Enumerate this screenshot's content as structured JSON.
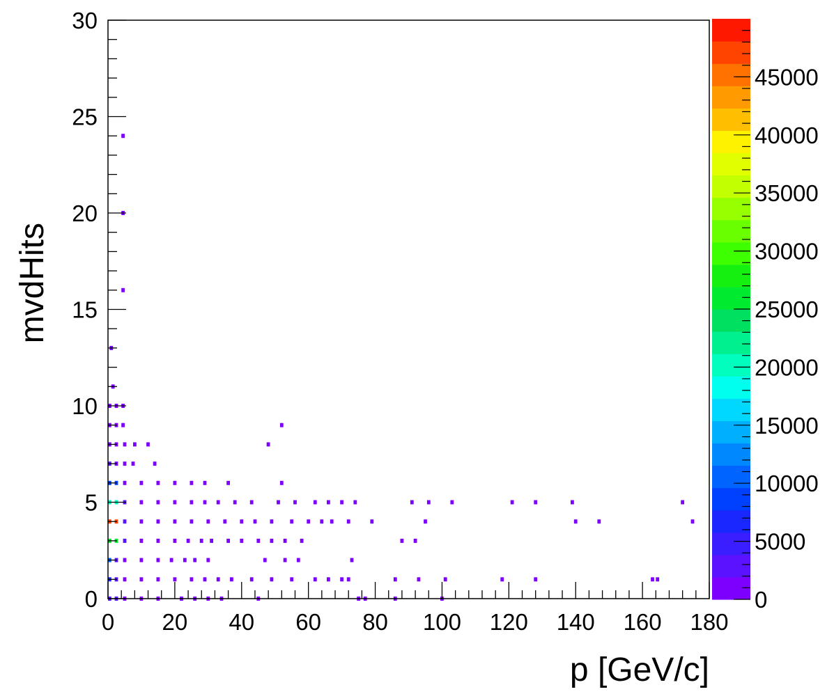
{
  "chart_data": {
    "type": "heatmap",
    "title": "",
    "xlabel": "p [GeV/c]",
    "ylabel": "mvdHits",
    "xlim": [
      0,
      180
    ],
    "ylim": [
      0,
      30
    ],
    "zlim": [
      0,
      50000
    ],
    "x_ticks": [
      "0",
      "20",
      "40",
      "60",
      "80",
      "100",
      "120",
      "140",
      "160",
      "180"
    ],
    "y_ticks": [
      "0",
      "5",
      "10",
      "15",
      "20",
      "25",
      "30"
    ],
    "z_ticks": [
      "0",
      "5000",
      "10000",
      "15000",
      "20000",
      "25000",
      "30000",
      "35000",
      "40000",
      "45000"
    ],
    "palette": [
      "#7d00ff",
      "#5a12ff",
      "#3a1eff",
      "#1a28ff",
      "#0040ff",
      "#0064ff",
      "#0088ff",
      "#00b0ff",
      "#00d8ff",
      "#00ffee",
      "#00ffbe",
      "#00f090",
      "#00e060",
      "#00ea30",
      "#16f010",
      "#3eff00",
      "#6aff00",
      "#96ff00",
      "#c2ff00",
      "#e2ff00",
      "#fff200",
      "#ffbf00",
      "#ff9a00",
      "#ff7200",
      "#ff4400",
      "#ff1800"
    ],
    "cells": [
      {
        "x": 0.5,
        "y": 0,
        "z": 3000
      },
      {
        "x": 2.5,
        "y": 0,
        "z": 2500
      },
      {
        "x": 5,
        "y": 0,
        "z": 1500
      },
      {
        "x": 10,
        "y": 0,
        "z": 500
      },
      {
        "x": 15,
        "y": 0,
        "z": 200
      },
      {
        "x": 22,
        "y": 0,
        "z": 60
      },
      {
        "x": 26,
        "y": 0,
        "z": 40
      },
      {
        "x": 30,
        "y": 0,
        "z": 30
      },
      {
        "x": 34,
        "y": 0,
        "z": 20
      },
      {
        "x": 45,
        "y": 0,
        "z": 10
      },
      {
        "x": 75,
        "y": 0,
        "z": 5
      },
      {
        "x": 77,
        "y": 0,
        "z": 5
      },
      {
        "x": 86,
        "y": 0,
        "z": 3
      },
      {
        "x": 100,
        "y": 0,
        "z": 3
      },
      {
        "x": 0.5,
        "y": 1,
        "z": 7000
      },
      {
        "x": 2.5,
        "y": 1,
        "z": 3000
      },
      {
        "x": 5,
        "y": 1,
        "z": 1500
      },
      {
        "x": 10,
        "y": 1,
        "z": 600
      },
      {
        "x": 15,
        "y": 1,
        "z": 300
      },
      {
        "x": 20,
        "y": 1,
        "z": 150
      },
      {
        "x": 25,
        "y": 1,
        "z": 80
      },
      {
        "x": 29,
        "y": 1,
        "z": 50
      },
      {
        "x": 33,
        "y": 1,
        "z": 30
      },
      {
        "x": 37,
        "y": 1,
        "z": 20
      },
      {
        "x": 43,
        "y": 1,
        "z": 15
      },
      {
        "x": 49,
        "y": 1,
        "z": 10
      },
      {
        "x": 55,
        "y": 1,
        "z": 8
      },
      {
        "x": 62,
        "y": 1,
        "z": 6
      },
      {
        "x": 66,
        "y": 1,
        "z": 5
      },
      {
        "x": 70,
        "y": 1,
        "z": 5
      },
      {
        "x": 72,
        "y": 1,
        "z": 4
      },
      {
        "x": 86,
        "y": 1,
        "z": 3
      },
      {
        "x": 93,
        "y": 1,
        "z": 3
      },
      {
        "x": 101,
        "y": 1,
        "z": 3
      },
      {
        "x": 118,
        "y": 1,
        "z": 2
      },
      {
        "x": 128,
        "y": 1,
        "z": 2
      },
      {
        "x": 163,
        "y": 1,
        "z": 2
      },
      {
        "x": 164.5,
        "y": 1,
        "z": 2
      },
      {
        "x": 0.5,
        "y": 2,
        "z": 11000
      },
      {
        "x": 2.5,
        "y": 2,
        "z": 3000
      },
      {
        "x": 5,
        "y": 2,
        "z": 1500
      },
      {
        "x": 10,
        "y": 2,
        "z": 500
      },
      {
        "x": 15,
        "y": 2,
        "z": 150
      },
      {
        "x": 19,
        "y": 2,
        "z": 60
      },
      {
        "x": 23,
        "y": 2,
        "z": 30
      },
      {
        "x": 26,
        "y": 2,
        "z": 20
      },
      {
        "x": 30,
        "y": 2,
        "z": 10
      },
      {
        "x": 47,
        "y": 2,
        "z": 5
      },
      {
        "x": 53,
        "y": 2,
        "z": 4
      },
      {
        "x": 57,
        "y": 2,
        "z": 4
      },
      {
        "x": 73,
        "y": 2,
        "z": 3
      },
      {
        "x": 0.5,
        "y": 3,
        "z": 26000
      },
      {
        "x": 2.5,
        "y": 3,
        "z": 26000
      },
      {
        "x": 5,
        "y": 3,
        "z": 2500
      },
      {
        "x": 10,
        "y": 3,
        "z": 800
      },
      {
        "x": 15,
        "y": 3,
        "z": 200
      },
      {
        "x": 20,
        "y": 3,
        "z": 80
      },
      {
        "x": 24,
        "y": 3,
        "z": 40
      },
      {
        "x": 28,
        "y": 3,
        "z": 20
      },
      {
        "x": 31,
        "y": 3,
        "z": 15
      },
      {
        "x": 36,
        "y": 3,
        "z": 10
      },
      {
        "x": 40,
        "y": 3,
        "z": 8
      },
      {
        "x": 45,
        "y": 3,
        "z": 6
      },
      {
        "x": 49,
        "y": 3,
        "z": 5
      },
      {
        "x": 53,
        "y": 3,
        "z": 5
      },
      {
        "x": 58,
        "y": 3,
        "z": 4
      },
      {
        "x": 88,
        "y": 3,
        "z": 3
      },
      {
        "x": 92,
        "y": 3,
        "z": 3
      },
      {
        "x": 0.5,
        "y": 4,
        "z": 48000
      },
      {
        "x": 2.5,
        "y": 4,
        "z": 48000
      },
      {
        "x": 5,
        "y": 4,
        "z": 3500
      },
      {
        "x": 10,
        "y": 4,
        "z": 1000
      },
      {
        "x": 15,
        "y": 4,
        "z": 300
      },
      {
        "x": 20,
        "y": 4,
        "z": 120
      },
      {
        "x": 25,
        "y": 4,
        "z": 60
      },
      {
        "x": 30,
        "y": 4,
        "z": 30
      },
      {
        "x": 35,
        "y": 4,
        "z": 20
      },
      {
        "x": 40,
        "y": 4,
        "z": 12
      },
      {
        "x": 44,
        "y": 4,
        "z": 10
      },
      {
        "x": 49,
        "y": 4,
        "z": 8
      },
      {
        "x": 55,
        "y": 4,
        "z": 6
      },
      {
        "x": 60,
        "y": 4,
        "z": 6
      },
      {
        "x": 64,
        "y": 4,
        "z": 5
      },
      {
        "x": 67,
        "y": 4,
        "z": 5
      },
      {
        "x": 72,
        "y": 4,
        "z": 4
      },
      {
        "x": 79,
        "y": 4,
        "z": 4
      },
      {
        "x": 95,
        "y": 4,
        "z": 3
      },
      {
        "x": 140,
        "y": 4,
        "z": 2
      },
      {
        "x": 147,
        "y": 4,
        "z": 2
      },
      {
        "x": 175,
        "y": 4,
        "z": 2
      },
      {
        "x": 0.5,
        "y": 5,
        "z": 20000
      },
      {
        "x": 2.5,
        "y": 5,
        "z": 20000
      },
      {
        "x": 5,
        "y": 5,
        "z": 3000
      },
      {
        "x": 10,
        "y": 5,
        "z": 1000
      },
      {
        "x": 15,
        "y": 5,
        "z": 300
      },
      {
        "x": 20,
        "y": 5,
        "z": 100
      },
      {
        "x": 25,
        "y": 5,
        "z": 50
      },
      {
        "x": 29,
        "y": 5,
        "z": 25
      },
      {
        "x": 33,
        "y": 5,
        "z": 15
      },
      {
        "x": 38,
        "y": 5,
        "z": 10
      },
      {
        "x": 43,
        "y": 5,
        "z": 8
      },
      {
        "x": 51,
        "y": 5,
        "z": 6
      },
      {
        "x": 56,
        "y": 5,
        "z": 5
      },
      {
        "x": 62,
        "y": 5,
        "z": 4
      },
      {
        "x": 66,
        "y": 5,
        "z": 4
      },
      {
        "x": 70,
        "y": 5,
        "z": 4
      },
      {
        "x": 74,
        "y": 5,
        "z": 3
      },
      {
        "x": 91,
        "y": 5,
        "z": 3
      },
      {
        "x": 96,
        "y": 5,
        "z": 3
      },
      {
        "x": 103,
        "y": 5,
        "z": 3
      },
      {
        "x": 121,
        "y": 5,
        "z": 2
      },
      {
        "x": 128,
        "y": 5,
        "z": 2
      },
      {
        "x": 139,
        "y": 5,
        "z": 2
      },
      {
        "x": 172,
        "y": 5,
        "z": 2
      },
      {
        "x": 0.5,
        "y": 6,
        "z": 9000
      },
      {
        "x": 2.5,
        "y": 6,
        "z": 9000
      },
      {
        "x": 5,
        "y": 6,
        "z": 1500
      },
      {
        "x": 10,
        "y": 6,
        "z": 300
      },
      {
        "x": 15,
        "y": 6,
        "z": 100
      },
      {
        "x": 20,
        "y": 6,
        "z": 40
      },
      {
        "x": 25,
        "y": 6,
        "z": 20
      },
      {
        "x": 29,
        "y": 6,
        "z": 10
      },
      {
        "x": 36,
        "y": 6,
        "z": 5
      },
      {
        "x": 52,
        "y": 6,
        "z": 3
      },
      {
        "x": 0.5,
        "y": 7,
        "z": 3000
      },
      {
        "x": 2.5,
        "y": 7,
        "z": 1500
      },
      {
        "x": 5,
        "y": 7,
        "z": 600
      },
      {
        "x": 7.5,
        "y": 7,
        "z": 100
      },
      {
        "x": 14,
        "y": 7,
        "z": 3
      },
      {
        "x": 0.5,
        "y": 8,
        "z": 1500
      },
      {
        "x": 2.5,
        "y": 8,
        "z": 800
      },
      {
        "x": 5,
        "y": 8,
        "z": 200
      },
      {
        "x": 8,
        "y": 8,
        "z": 50
      },
      {
        "x": 12,
        "y": 8,
        "z": 10
      },
      {
        "x": 48,
        "y": 8,
        "z": 3
      },
      {
        "x": 0.5,
        "y": 9,
        "z": 800
      },
      {
        "x": 2.5,
        "y": 9,
        "z": 200
      },
      {
        "x": 4.5,
        "y": 9,
        "z": 40
      },
      {
        "x": 52,
        "y": 9,
        "z": 3
      },
      {
        "x": 0.5,
        "y": 10,
        "z": 300
      },
      {
        "x": 2.5,
        "y": 10,
        "z": 80
      },
      {
        "x": 4.5,
        "y": 10,
        "z": 10
      },
      {
        "x": 1.5,
        "y": 11,
        "z": 20
      },
      {
        "x": 1,
        "y": 13,
        "z": 5
      },
      {
        "x": 4.5,
        "y": 16,
        "z": 3
      },
      {
        "x": 4.5,
        "y": 20,
        "z": 3
      },
      {
        "x": 4.5,
        "y": 24,
        "z": 3
      }
    ]
  }
}
